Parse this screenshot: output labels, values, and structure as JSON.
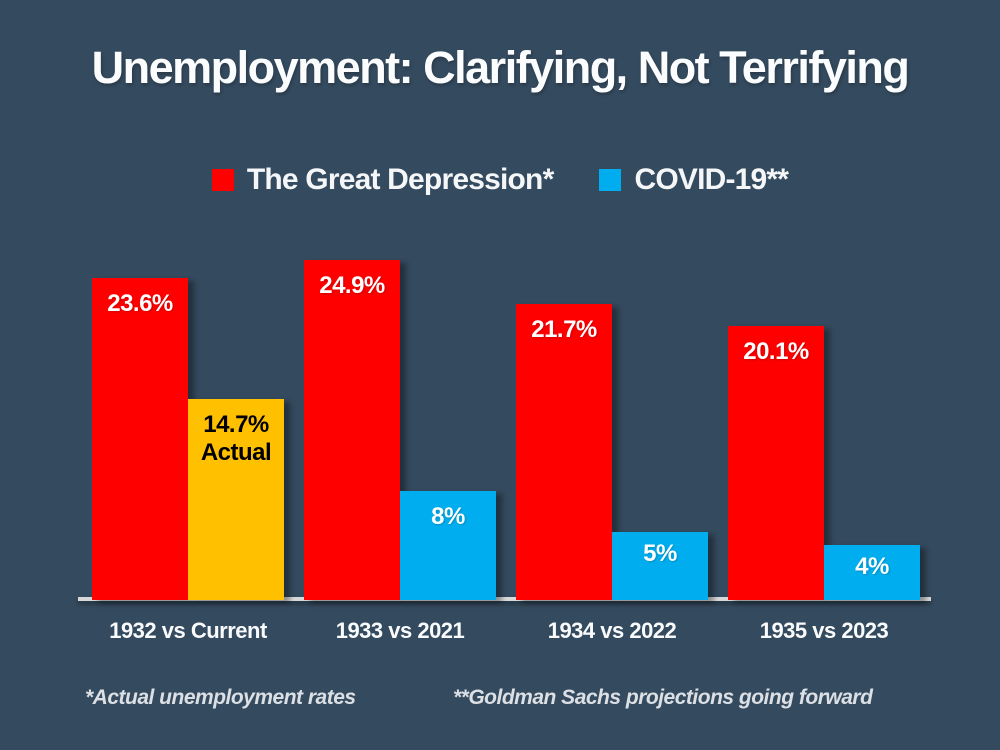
{
  "title": "Unemployment: Clarifying, Not Terrifying",
  "legend": [
    {
      "label": "The Great Depression*",
      "color": "#FF0000"
    },
    {
      "label": "COVID-19**",
      "color": "#00AEEF"
    }
  ],
  "footnotes": {
    "left": "*Actual unemployment rates",
    "right": "**Goldman Sachs projections going forward"
  },
  "colors": {
    "background": "#344A5E",
    "depression_red": "#FF0000",
    "covid_blue": "#00AEEF",
    "actual_gold": "#FFC000",
    "axis_line": "#D8D8D8",
    "label_light": "#FFFFFF",
    "label_dark": "#000000"
  },
  "chart_data": {
    "type": "bar",
    "title": "Unemployment: Clarifying, Not Terrifying",
    "categories": [
      "1932 vs Current",
      "1933 vs 2021",
      "1934 vs 2022",
      "1935 vs 2023"
    ],
    "series": [
      {
        "name": "The Great Depression*",
        "color": "#FF0000",
        "values": [
          23.6,
          24.9,
          21.7,
          20.1
        ],
        "labels": [
          "23.6%",
          "24.9%",
          "21.7%",
          "20.1%"
        ],
        "label_colors": [
          "#FFFFFF",
          "#FFFFFF",
          "#FFFFFF",
          "#FFFFFF"
        ]
      },
      {
        "name": "COVID-19**",
        "color": "#00AEEF",
        "values": [
          14.7,
          8,
          5,
          4
        ],
        "labels": [
          "14.7%\nActual",
          "8%",
          "5%",
          "4%"
        ],
        "bar_colors": [
          "#FFC000",
          "#00AEEF",
          "#00AEEF",
          "#00AEEF"
        ],
        "label_colors": [
          "#000000",
          "#FFFFFF",
          "#FFFFFF",
          "#FFFFFF"
        ]
      }
    ],
    "ylim": [
      0,
      26
    ],
    "unit": "percent",
    "grid": false,
    "legend_position": "top",
    "axis_line": true
  }
}
